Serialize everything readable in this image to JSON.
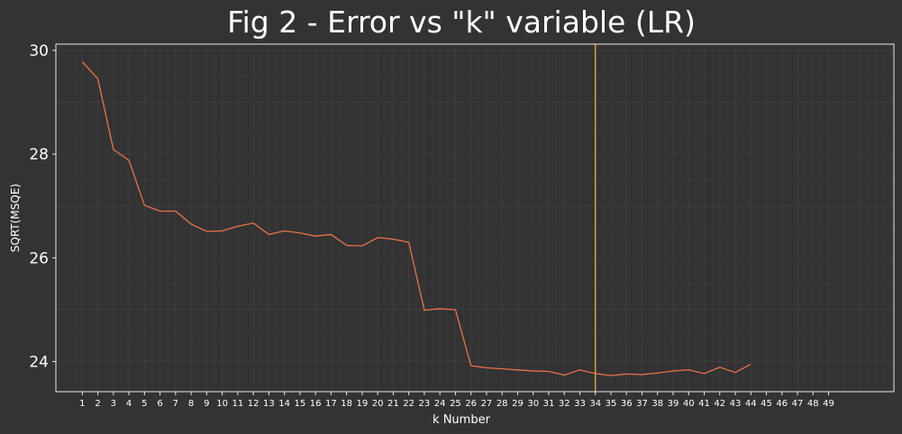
{
  "chart_data": {
    "type": "line",
    "title": "Fig 2 - Error vs \"k\" variable (LR)",
    "xlabel": "k Number",
    "ylabel": "SQRT(MSQE)",
    "x": [
      1,
      2,
      3,
      4,
      5,
      6,
      7,
      8,
      9,
      10,
      11,
      12,
      13,
      14,
      15,
      16,
      17,
      18,
      19,
      20,
      21,
      22,
      23,
      24,
      25,
      26,
      27,
      28,
      29,
      30,
      31,
      32,
      33,
      34,
      35,
      36,
      37,
      38,
      39,
      40,
      41,
      42,
      43,
      44
    ],
    "xticks": [
      1,
      2,
      3,
      4,
      5,
      6,
      7,
      8,
      9,
      10,
      11,
      12,
      13,
      14,
      15,
      16,
      17,
      18,
      19,
      20,
      21,
      22,
      23,
      24,
      25,
      26,
      27,
      28,
      29,
      30,
      31,
      32,
      33,
      34,
      35,
      36,
      37,
      38,
      39,
      40,
      41,
      42,
      43,
      44,
      45,
      46,
      47,
      48,
      49
    ],
    "yticks": [
      24,
      26,
      28,
      30
    ],
    "xlim": [
      -0.7,
      53.2
    ],
    "ylim": [
      23.42,
      30.12
    ],
    "series": [
      {
        "values": [
          29.78,
          29.45,
          28.09,
          27.88,
          27.01,
          26.9,
          26.9,
          26.65,
          26.51,
          26.52,
          26.61,
          26.67,
          26.45,
          26.52,
          26.48,
          26.42,
          26.45,
          26.24,
          26.23,
          26.39,
          26.36,
          26.3,
          24.99,
          25.02,
          25.0,
          23.92,
          23.88,
          23.86,
          23.84,
          23.82,
          23.81,
          23.74,
          23.84,
          23.77,
          23.73,
          23.76,
          23.75,
          23.78,
          23.82,
          23.84,
          23.77,
          23.89,
          23.79,
          23.95
        ],
        "color": "#e8734a"
      }
    ],
    "vline": {
      "x": 34,
      "color": "#f2b94b"
    },
    "grid": true
  }
}
